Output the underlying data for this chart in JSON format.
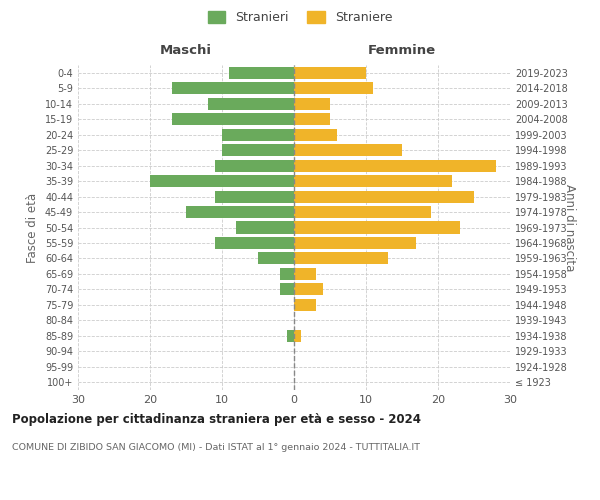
{
  "age_groups": [
    "100+",
    "95-99",
    "90-94",
    "85-89",
    "80-84",
    "75-79",
    "70-74",
    "65-69",
    "60-64",
    "55-59",
    "50-54",
    "45-49",
    "40-44",
    "35-39",
    "30-34",
    "25-29",
    "20-24",
    "15-19",
    "10-14",
    "5-9",
    "0-4"
  ],
  "birth_years": [
    "≤ 1923",
    "1924-1928",
    "1929-1933",
    "1934-1938",
    "1939-1943",
    "1944-1948",
    "1949-1953",
    "1954-1958",
    "1959-1963",
    "1964-1968",
    "1969-1973",
    "1974-1978",
    "1979-1983",
    "1984-1988",
    "1989-1993",
    "1994-1998",
    "1999-2003",
    "2004-2008",
    "2009-2013",
    "2014-2018",
    "2019-2023"
  ],
  "maschi": [
    0,
    0,
    0,
    1,
    0,
    0,
    2,
    2,
    5,
    11,
    8,
    15,
    11,
    20,
    11,
    10,
    10,
    17,
    12,
    17,
    9
  ],
  "femmine": [
    0,
    0,
    0,
    1,
    0,
    3,
    4,
    3,
    13,
    17,
    23,
    19,
    25,
    22,
    28,
    15,
    6,
    5,
    5,
    11,
    10
  ],
  "maschi_color": "#6aaa5c",
  "femmine_color": "#f0b429",
  "grid_color": "#cccccc",
  "center_line_color": "#888888",
  "xlim": 30,
  "title": "Popolazione per cittadinanza straniera per età e sesso - 2024",
  "subtitle": "COMUNE DI ZIBIDO SAN GIACOMO (MI) - Dati ISTAT al 1° gennaio 2024 - TUTTITALIA.IT",
  "ylabel_left": "Fasce di età",
  "ylabel_right": "Anni di nascita",
  "label_maschi": "Maschi",
  "label_femmine": "Femmine",
  "legend_stranieri": "Stranieri",
  "legend_straniere": "Straniere",
  "background_color": "#ffffff"
}
